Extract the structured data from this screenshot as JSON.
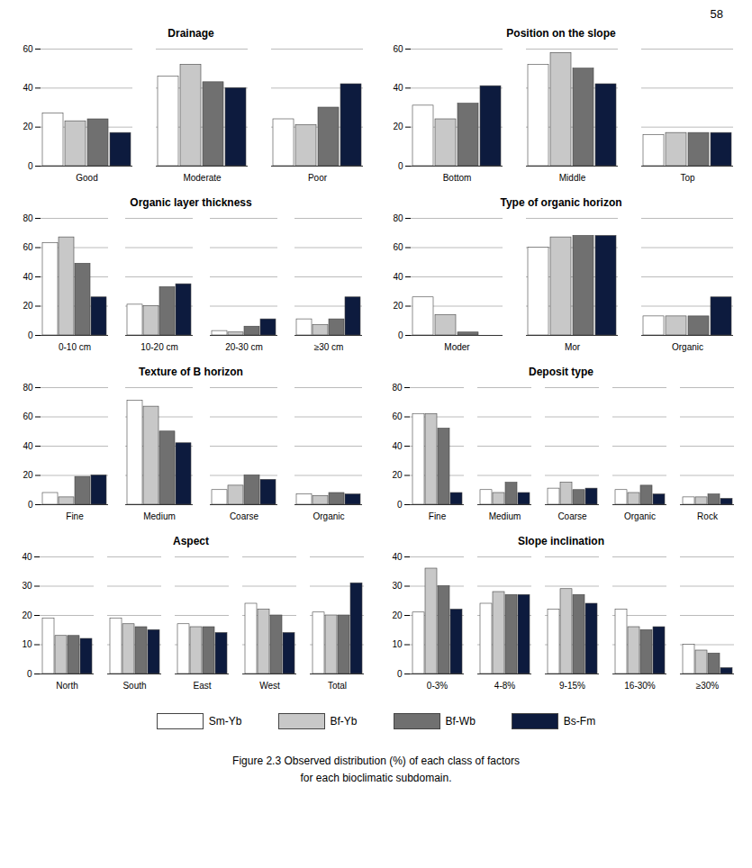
{
  "chart_data": [
    {
      "type": "bar",
      "title": "Drainage",
      "categories": [
        "Good",
        "Moderate",
        "Poor"
      ],
      "ylim": [
        0,
        60
      ],
      "yticks": [
        0,
        20,
        40,
        60
      ],
      "grid": true,
      "legend": "bottom",
      "series": [
        {
          "name": "Sm-Yb",
          "color": "#ffffff",
          "values": [
            27,
            46,
            24
          ]
        },
        {
          "name": "Bf-Yb",
          "color": "#c8c8c8",
          "values": [
            23,
            52,
            21
          ]
        },
        {
          "name": "Bf-Wb",
          "color": "#707070",
          "values": [
            24,
            43,
            30
          ]
        },
        {
          "name": "Bs-Fm",
          "color": "#0d1b3e",
          "values": [
            17,
            40,
            42
          ]
        }
      ]
    },
    {
      "type": "bar",
      "title": "Position on the slope",
      "categories": [
        "Bottom",
        "Middle",
        "Top"
      ],
      "ylim": [
        0,
        60
      ],
      "yticks": [
        0,
        20,
        40,
        60
      ],
      "grid": true,
      "legend": "bottom",
      "series": [
        {
          "name": "Sm-Yb",
          "color": "#ffffff",
          "values": [
            31,
            52,
            16
          ]
        },
        {
          "name": "Bf-Yb",
          "color": "#c8c8c8",
          "values": [
            24,
            58,
            17
          ]
        },
        {
          "name": "Bf-Wb",
          "color": "#707070",
          "values": [
            32,
            50,
            17
          ]
        },
        {
          "name": "Bs-Fm",
          "color": "#0d1b3e",
          "values": [
            41,
            42,
            17
          ]
        }
      ]
    },
    {
      "type": "bar",
      "title": "Organic layer thickness",
      "categories": [
        "0-10 cm",
        "10-20 cm",
        "20-30 cm",
        "≥30 cm"
      ],
      "ylim": [
        0,
        80
      ],
      "yticks": [
        0,
        20,
        40,
        60,
        80
      ],
      "grid": true,
      "legend": "bottom",
      "series": [
        {
          "name": "Sm-Yb",
          "color": "#ffffff",
          "values": [
            63,
            21,
            3,
            11
          ]
        },
        {
          "name": "Bf-Yb",
          "color": "#c8c8c8",
          "values": [
            67,
            20,
            2,
            7
          ]
        },
        {
          "name": "Bf-Wb",
          "color": "#707070",
          "values": [
            49,
            33,
            6,
            11
          ]
        },
        {
          "name": "Bs-Fm",
          "color": "#0d1b3e",
          "values": [
            26,
            35,
            11,
            26
          ]
        }
      ]
    },
    {
      "type": "bar",
      "title": "Type of organic horizon",
      "categories": [
        "Moder",
        "Mor",
        "Organic"
      ],
      "ylim": [
        0,
        80
      ],
      "yticks": [
        0,
        20,
        40,
        60,
        80
      ],
      "grid": true,
      "legend": "bottom",
      "series": [
        {
          "name": "Sm-Yb",
          "color": "#ffffff",
          "values": [
            26,
            60,
            13
          ]
        },
        {
          "name": "Bf-Yb",
          "color": "#c8c8c8",
          "values": [
            14,
            67,
            13
          ]
        },
        {
          "name": "Bf-Wb",
          "color": "#707070",
          "values": [
            2,
            68,
            13
          ]
        },
        {
          "name": "Bs-Fm",
          "color": "#0d1b3e",
          "values": [
            0,
            68,
            26
          ]
        }
      ]
    },
    {
      "type": "bar",
      "title": "Texture of B horizon",
      "categories": [
        "Fine",
        "Medium",
        "Coarse",
        "Organic"
      ],
      "ylim": [
        0,
        80
      ],
      "yticks": [
        0,
        20,
        40,
        60,
        80
      ],
      "grid": true,
      "legend": "bottom",
      "series": [
        {
          "name": "Sm-Yb",
          "color": "#ffffff",
          "values": [
            8,
            71,
            10,
            7
          ]
        },
        {
          "name": "Bf-Yb",
          "color": "#c8c8c8",
          "values": [
            5,
            67,
            13,
            6
          ]
        },
        {
          "name": "Bf-Wb",
          "color": "#707070",
          "values": [
            19,
            50,
            20,
            8
          ]
        },
        {
          "name": "Bs-Fm",
          "color": "#0d1b3e",
          "values": [
            20,
            42,
            17,
            7
          ]
        }
      ]
    },
    {
      "type": "bar",
      "title": "Deposit type",
      "categories": [
        "Fine",
        "Medium",
        "Coarse",
        "Organic",
        "Rock"
      ],
      "ylim": [
        0,
        80
      ],
      "yticks": [
        0,
        20,
        40,
        60,
        80
      ],
      "grid": true,
      "legend": "bottom",
      "series": [
        {
          "name": "Sm-Yb",
          "color": "#ffffff",
          "values": [
            62,
            10,
            11,
            10,
            5
          ]
        },
        {
          "name": "Bf-Yb",
          "color": "#c8c8c8",
          "values": [
            62,
            8,
            15,
            8,
            5
          ]
        },
        {
          "name": "Bf-Wb",
          "color": "#707070",
          "values": [
            52,
            15,
            10,
            13,
            7
          ]
        },
        {
          "name": "Bs-Fm",
          "color": "#0d1b3e",
          "values": [
            8,
            8,
            11,
            7,
            4
          ]
        }
      ]
    },
    {
      "type": "bar",
      "title": "Aspect",
      "categories": [
        "North",
        "South",
        "East",
        "West",
        "Total"
      ],
      "ylim": [
        0,
        40
      ],
      "yticks": [
        0,
        10,
        20,
        30,
        40
      ],
      "grid": true,
      "legend": "bottom",
      "series": [
        {
          "name": "Sm-Yb",
          "color": "#ffffff",
          "values": [
            19,
            19,
            17,
            24,
            21
          ]
        },
        {
          "name": "Bf-Yb",
          "color": "#c8c8c8",
          "values": [
            13,
            17,
            16,
            22,
            20
          ]
        },
        {
          "name": "Bf-Wb",
          "color": "#707070",
          "values": [
            13,
            16,
            16,
            20,
            20
          ]
        },
        {
          "name": "Bs-Fm",
          "color": "#0d1b3e",
          "values": [
            12,
            15,
            14,
            14,
            31
          ]
        }
      ]
    },
    {
      "type": "bar",
      "title": "Slope inclination",
      "categories": [
        "0-3%",
        "4-8%",
        "9-15%",
        "16-30%",
        "≥30%"
      ],
      "ylim": [
        0,
        40
      ],
      "yticks": [
        0,
        10,
        20,
        30,
        40
      ],
      "grid": true,
      "legend": "bottom",
      "series": [
        {
          "name": "Sm-Yb",
          "color": "#ffffff",
          "values": [
            21,
            24,
            22,
            22,
            10
          ]
        },
        {
          "name": "Bf-Yb",
          "color": "#c8c8c8",
          "values": [
            36,
            28,
            29,
            16,
            8
          ]
        },
        {
          "name": "Bf-Wb",
          "color": "#707070",
          "values": [
            30,
            27,
            27,
            15,
            7
          ]
        },
        {
          "name": "Bs-Fm",
          "color": "#0d1b3e",
          "values": [
            22,
            27,
            24,
            16,
            2
          ]
        }
      ]
    }
  ],
  "annotations": [
    "58"
  ],
  "caption": [
    "Figure 2.3 Observed distribution (%) of each class of factors",
    "for each bioclimatic subdomain."
  ]
}
